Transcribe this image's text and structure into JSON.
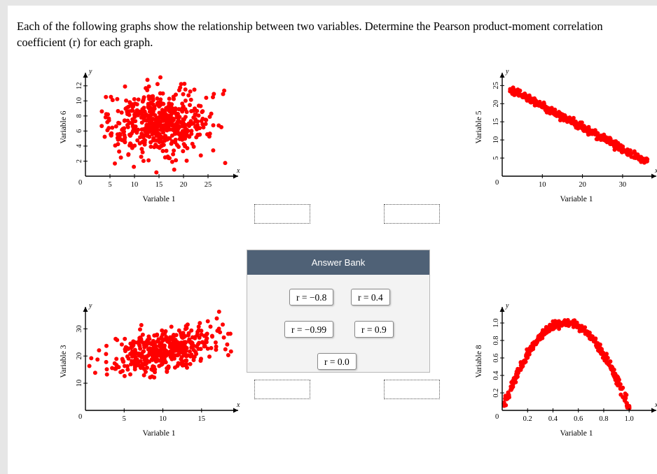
{
  "question": {
    "text": "Each of the following graphs show the relationship between two variables. Determine the Pearson product-moment correlation coefficient (r) for each graph."
  },
  "answer_bank": {
    "title": "Answer Bank",
    "options": [
      "r = −0.8",
      "r = 0.4",
      "r = −0.99",
      "r = 0.9",
      "r = 0.0"
    ]
  },
  "colors": {
    "points": "#ff0000",
    "bank_header": "#4f6176"
  },
  "chart_data": [
    {
      "type": "scatter",
      "xlabel": "Variable 1",
      "ylabel": "Variable 6",
      "x_axis_letter": "x",
      "y_axis_letter": "y",
      "xticks": [
        5,
        10,
        15,
        20,
        25
      ],
      "yticks": [
        2,
        4,
        6,
        8,
        10,
        12
      ],
      "origin_label": "0",
      "xlim": [
        0,
        30
      ],
      "ylim": [
        0,
        13
      ],
      "pattern": "no correlation",
      "center": [
        15,
        7
      ],
      "spread": [
        5.5,
        2.2
      ]
    },
    {
      "type": "scatter",
      "xlabel": "Variable 1",
      "ylabel": "Variable 5",
      "x_axis_letter": "x",
      "y_axis_letter": "y",
      "xticks": [
        10,
        20,
        30
      ],
      "yticks": [
        5,
        10,
        15,
        20,
        25
      ],
      "origin_label": "0",
      "xlim": [
        0,
        37
      ],
      "ylim": [
        0,
        27
      ],
      "pattern": "strong negative linear",
      "line": {
        "x_start": 2,
        "y_start": 24,
        "x_end": 36,
        "y_end": 4
      }
    },
    {
      "type": "scatter",
      "xlabel": "Variable 1",
      "ylabel": "Variable 3",
      "x_axis_letter": "x",
      "y_axis_letter": "y",
      "xticks": [
        5,
        10,
        15
      ],
      "yticks": [
        10,
        20,
        30
      ],
      "origin_label": "0",
      "xlim": [
        0,
        19
      ],
      "ylim": [
        0,
        36
      ],
      "pattern": "moderate positive",
      "center": [
        10,
        22
      ],
      "spread": [
        3.5,
        5
      ]
    },
    {
      "type": "scatter",
      "xlabel": "Variable 1",
      "ylabel": "Variable 8",
      "x_axis_letter": "x",
      "y_axis_letter": "y",
      "xticks": [
        0.2,
        0.4,
        0.6,
        0.8,
        1.0
      ],
      "xtick_labels": [
        "0.2",
        "0.4",
        "0.6",
        "0.8",
        "1.0"
      ],
      "yticks": [
        0.2,
        0.4,
        0.6,
        0.8,
        1.0
      ],
      "ytick_labels": [
        "0.2",
        "0.4",
        "0.6",
        "0.8",
        "1.0"
      ],
      "origin_label": "0",
      "xlim": [
        0,
        1.17
      ],
      "ylim": [
        0,
        1.12
      ],
      "pattern": "parabolic (no linear correlation)",
      "curve": "y = 4x(1 - x)"
    }
  ]
}
